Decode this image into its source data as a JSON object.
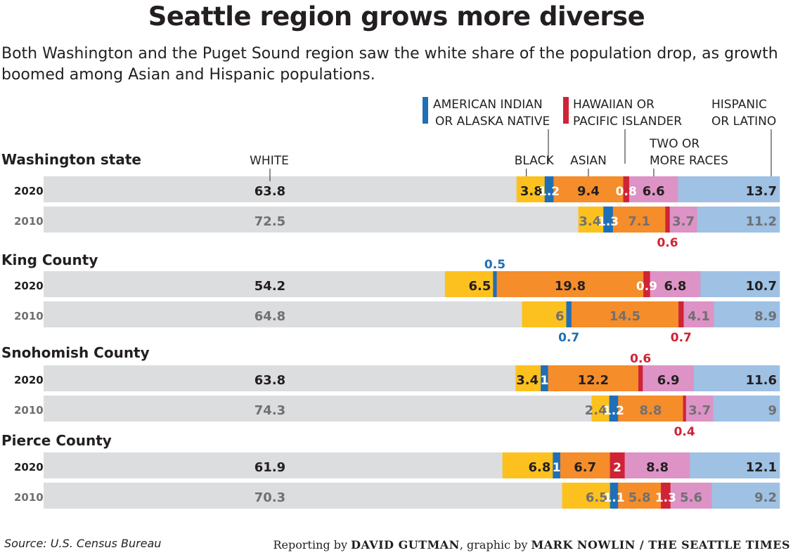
{
  "title": "Seattle region grows more diverse",
  "subtitle": "Both Washington and the Puget Sound region saw the white share of the population drop, as growth boomed among Asian and Hispanic populations.",
  "source": "Source: U.S. Census Bureau",
  "credit": {
    "prefix1": "Reporting by ",
    "reporter": "DAVID GUTMAN",
    "prefix2": ", graphic by ",
    "graphic": "MARK NOWLIN / THE SEATTLE TIMES"
  },
  "colors": {
    "white": "#dcdddf",
    "black": "#fcc11e",
    "american_indian": "#1f6fb6",
    "asian": "#f58d2a",
    "hawaiian": "#cf2336",
    "two_or_more": "#dd93c5",
    "hispanic": "#9ec1e4",
    "aian_label": "#1f6fb6",
    "hawaiian_label": "#cf2336"
  },
  "chart_data": {
    "type": "bar",
    "stacked": true,
    "orientation": "horizontal",
    "categories": [
      "White",
      "Black",
      "American Indian or Alaska Native",
      "Asian",
      "Hawaiian or Pacific Islander",
      "Two or more races",
      "Hispanic or Latino"
    ],
    "legend_labels": {
      "white": "WHITE",
      "black": "BLACK",
      "american_indian": [
        "AMERICAN INDIAN",
        "OR ALASKA NATIVE"
      ],
      "asian": "ASIAN",
      "hawaiian": [
        "HAWAIIAN OR",
        "PACIFIC ISLANDER"
      ],
      "two_or_more": [
        "TWO OR",
        "MORE RACES"
      ],
      "hispanic": [
        "HISPANIC",
        "OR LATINO"
      ]
    },
    "groups": [
      {
        "name": "Washington state",
        "rows": [
          {
            "year": "2020",
            "values": [
              63.8,
              3.8,
              1.2,
              9.4,
              0.8,
              6.6,
              13.7
            ]
          },
          {
            "year": "2010",
            "values": [
              72.5,
              3.4,
              1.3,
              7.1,
              0.6,
              3.7,
              11.2
            ]
          }
        ]
      },
      {
        "name": "King County",
        "rows": [
          {
            "year": "2020",
            "values": [
              54.2,
              6.5,
              0.5,
              19.8,
              0.9,
              6.8,
              10.7
            ]
          },
          {
            "year": "2010",
            "values": [
              64.8,
              6,
              0.7,
              14.5,
              0.7,
              4.1,
              8.9
            ]
          }
        ]
      },
      {
        "name": "Snohomish County",
        "rows": [
          {
            "year": "2020",
            "values": [
              63.8,
              3.4,
              1,
              12.2,
              0.6,
              6.9,
              11.6
            ]
          },
          {
            "year": "2010",
            "values": [
              74.3,
              2.4,
              1.2,
              8.8,
              0.4,
              3.7,
              9
            ]
          }
        ]
      },
      {
        "name": "Pierce County",
        "rows": [
          {
            "year": "2020",
            "values": [
              61.9,
              6.8,
              1,
              6.7,
              2,
              8.8,
              12.1
            ]
          },
          {
            "year": "2010",
            "values": [
              70.3,
              6.5,
              1.1,
              5.8,
              1.3,
              5.6,
              9.2
            ]
          }
        ]
      }
    ]
  }
}
